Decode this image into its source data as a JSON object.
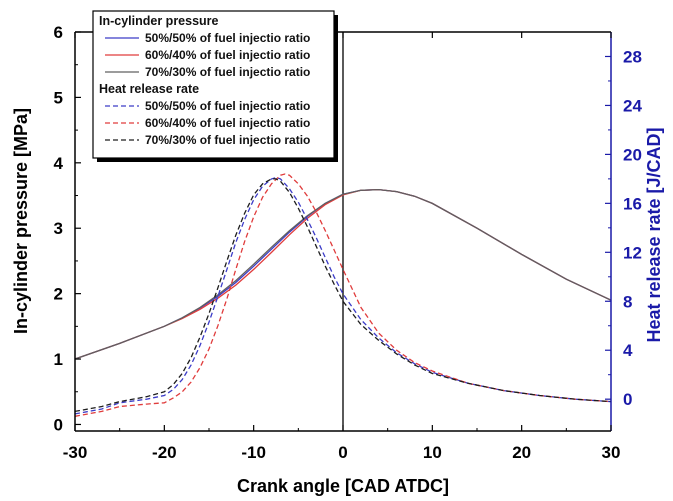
{
  "chart_data": {
    "type": "line",
    "xlabel": "Crank angle [CAD ATDC]",
    "ylabel": "In-cylinder pressure [MPa]",
    "y2label": "Heat release rate [J/CAD]",
    "xlim": [
      -30,
      30
    ],
    "ylim": [
      -0.1,
      6
    ],
    "y2lim": [
      -2.6,
      30
    ],
    "xticks": [
      -30,
      -20,
      -10,
      0,
      10,
      20,
      30
    ],
    "yticks": [
      0,
      1,
      2,
      3,
      4,
      5,
      6
    ],
    "y2ticks": [
      0,
      4,
      8,
      12,
      16,
      20,
      24,
      28
    ],
    "vline_x": 0,
    "grid": false,
    "legend_position": "top-left",
    "legend_groups": [
      {
        "title": "In-cylinder pressure",
        "series_names": [
          "50%/50% of fuel injectio ratio",
          "60%/40% of fuel injectio ratio",
          "70%/30% of fuel injectio ratio"
        ]
      },
      {
        "title": "Heat release rate",
        "series_names": [
          "50%/50% of fuel injectio ratio",
          "60%/40% of fuel injectio ratio",
          "70%/30% of fuel injectio ratio"
        ]
      }
    ],
    "series": [
      {
        "group": "pressure",
        "name": "50%/50% of fuel injectio ratio",
        "color": "#3c3cc8",
        "dash": "solid",
        "axis": "left",
        "x": [
          -30,
          -25,
          -20,
          -18,
          -16,
          -14,
          -12,
          -10,
          -8,
          -6,
          -4,
          -2,
          0,
          2,
          4,
          6,
          8,
          10,
          15,
          20,
          25,
          30
        ],
        "y": [
          1.0,
          1.24,
          1.5,
          1.63,
          1.78,
          1.96,
          2.17,
          2.42,
          2.68,
          2.94,
          3.18,
          3.38,
          3.52,
          3.58,
          3.59,
          3.56,
          3.49,
          3.38,
          3.0,
          2.6,
          2.22,
          1.9
        ]
      },
      {
        "group": "pressure",
        "name": "60%/40% of fuel injectio ratio",
        "color": "#e03c3c",
        "dash": "solid",
        "axis": "left",
        "x": [
          -30,
          -25,
          -20,
          -18,
          -16,
          -14,
          -12,
          -10,
          -8,
          -6,
          -4,
          -2,
          0,
          2,
          4,
          6,
          8,
          10,
          15,
          20,
          25,
          30
        ],
        "y": [
          1.0,
          1.24,
          1.5,
          1.62,
          1.76,
          1.93,
          2.13,
          2.37,
          2.63,
          2.9,
          3.15,
          3.36,
          3.51,
          3.58,
          3.59,
          3.56,
          3.49,
          3.38,
          3.0,
          2.6,
          2.22,
          1.9
        ]
      },
      {
        "group": "pressure",
        "name": "70%/30% of fuel injectio ratio",
        "color": "#606060",
        "dash": "solid",
        "axis": "left",
        "x": [
          -30,
          -25,
          -20,
          -18,
          -16,
          -14,
          -12,
          -10,
          -8,
          -6,
          -4,
          -2,
          0,
          2,
          4,
          6,
          8,
          10,
          15,
          20,
          25,
          30
        ],
        "y": [
          1.0,
          1.24,
          1.5,
          1.63,
          1.79,
          1.98,
          2.2,
          2.45,
          2.71,
          2.96,
          3.19,
          3.38,
          3.52,
          3.58,
          3.59,
          3.56,
          3.49,
          3.38,
          3.0,
          2.6,
          2.22,
          1.9
        ]
      },
      {
        "group": "heat",
        "name": "50%/50% of fuel injectio ratio",
        "color": "#3c3cc8",
        "dash": "dashed",
        "axis": "right",
        "x": [
          -30,
          -27,
          -25,
          -22,
          -20,
          -19,
          -18,
          -17,
          -16,
          -15,
          -14,
          -13,
          -12,
          -11,
          -10,
          -9,
          -8,
          -7.5,
          -7,
          -6,
          -5,
          -4,
          -3,
          -2,
          -1,
          0,
          2,
          4,
          6,
          8,
          10,
          14,
          18,
          22,
          26,
          30
        ],
        "y": [
          -1.2,
          -0.8,
          -0.3,
          0.0,
          0.3,
          0.8,
          1.6,
          2.8,
          4.4,
          6.3,
          8.4,
          10.6,
          12.8,
          14.7,
          16.3,
          17.4,
          18.0,
          18.1,
          18.0,
          17.2,
          16.1,
          14.7,
          13.2,
          11.6,
          10.0,
          8.6,
          6.5,
          5.0,
          3.8,
          2.9,
          2.2,
          1.3,
          0.7,
          0.3,
          0.0,
          -0.2
        ]
      },
      {
        "group": "heat",
        "name": "60%/40% of fuel injectio ratio",
        "color": "#e03c3c",
        "dash": "dashed",
        "axis": "right",
        "x": [
          -30,
          -27,
          -25,
          -22,
          -20,
          -19,
          -18,
          -17,
          -16,
          -15,
          -14,
          -13,
          -12,
          -11,
          -10,
          -9,
          -8,
          -7,
          -6.5,
          -6,
          -5,
          -4,
          -3,
          -2,
          -1,
          0,
          2,
          4,
          6,
          8,
          10,
          14,
          18,
          22,
          26,
          30
        ],
        "y": [
          -1.4,
          -1.0,
          -0.6,
          -0.4,
          -0.3,
          0.1,
          0.6,
          1.4,
          2.6,
          4.1,
          6.0,
          8.2,
          10.6,
          12.9,
          14.9,
          16.5,
          17.6,
          18.3,
          18.4,
          18.3,
          17.6,
          16.6,
          15.3,
          13.8,
          12.2,
          10.6,
          7.5,
          5.4,
          4.0,
          3.0,
          2.3,
          1.3,
          0.7,
          0.3,
          0.0,
          -0.2
        ]
      },
      {
        "group": "heat",
        "name": "70%/30% of fuel injectio ratio",
        "color": "#1e1e1e",
        "dash": "dashed",
        "axis": "right",
        "x": [
          -30,
          -27,
          -25,
          -22,
          -20,
          -19,
          -18,
          -17,
          -16,
          -15,
          -14,
          -13,
          -12,
          -11,
          -10,
          -9,
          -8,
          -7.5,
          -7,
          -6,
          -5,
          -4,
          -3,
          -2,
          -1,
          0,
          2,
          4,
          6,
          8,
          10,
          14,
          18,
          22,
          26,
          30
        ],
        "y": [
          -1.0,
          -0.6,
          -0.2,
          0.2,
          0.6,
          1.2,
          2.1,
          3.4,
          5.1,
          7.0,
          9.1,
          11.3,
          13.4,
          15.2,
          16.7,
          17.6,
          18.0,
          18.0,
          17.8,
          16.9,
          15.6,
          14.1,
          12.5,
          10.9,
          9.4,
          8.0,
          6.1,
          4.8,
          3.7,
          2.8,
          2.1,
          1.3,
          0.7,
          0.3,
          0.0,
          -0.2
        ]
      }
    ]
  }
}
